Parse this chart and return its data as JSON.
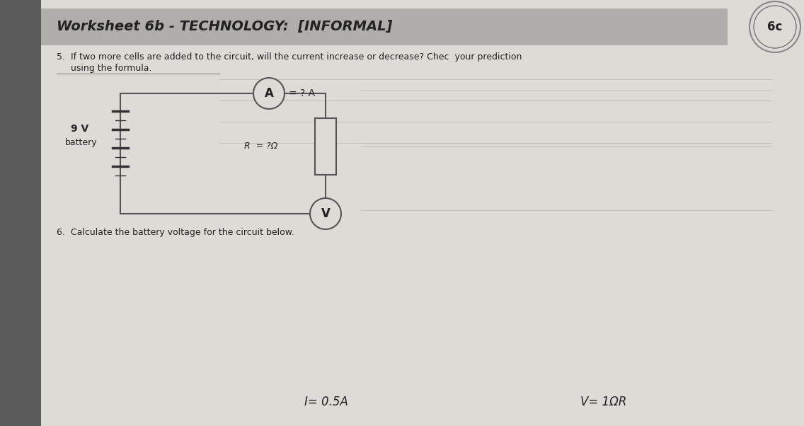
{
  "title": "Worksheet 6b - TECHNOLOGY:  [INFORMAL]",
  "title_fontsize": 14,
  "title_bg_color": "#b0aeaa",
  "page_bg_color": "#c5c2ba",
  "paper_bg_color": "#dddbd5",
  "q5_text_line1": "5.  If two more cells are added to the circuit, will the current increase or decrease? Chec  your prediction",
  "q5_text_line2": "     using the formula.",
  "q6_text": "6.  Calculate the battery voltage for the circuit below.",
  "circuit_label_9v": "9 V",
  "circuit_label_battery": "battery",
  "circuit_label_R": "R  = ?Ω",
  "circuit_label_I": "= ? A",
  "badge_text": "6c",
  "bottom_formula1": "I= 0.5A",
  "bottom_formula2": "V= 1ΩR",
  "line_color": "#555555",
  "text_color": "#333333",
  "dark_text_color": "#222222",
  "faint_line_color": "#b8b5ad",
  "wire_color": "#555555",
  "battery_line_color": "#333333"
}
